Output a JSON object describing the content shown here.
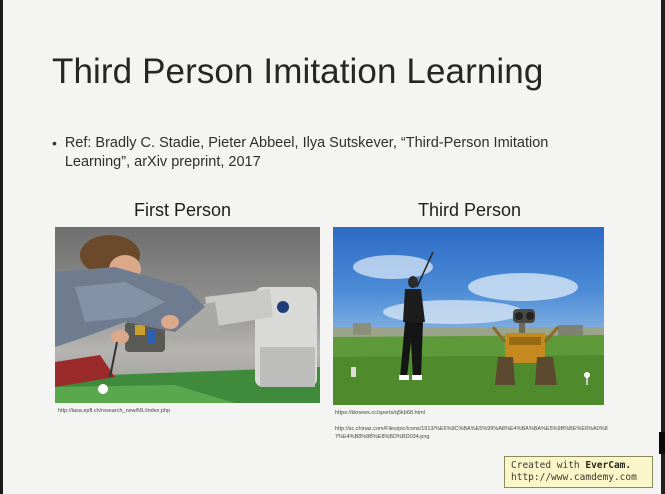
{
  "slide": {
    "title": "Third Person Imitation Learning",
    "bullet": {
      "symbol": "•",
      "text": "Ref: Bradly C. Stadie, Pieter Abbeel, Ilya Sutskever, “Third-Person Imitation Learning”, arXiv preprint, 2017"
    },
    "columns": [
      {
        "heading": "First Person",
        "image_subject": "person-guiding-robot-arm",
        "caption": "http://lasa.epfl.ch/research_new/ML/index.php"
      },
      {
        "heading": "Third Person",
        "image_subject": "golfer-and-robot-on-course",
        "caption_line1": "https://kknews.cc/sports/q5kb68.html",
        "caption_line2": "http://sc.chinaz.com/Files/pic/icons/1913/%E6%9C%BA%E5%99%A8%E4%BA%BA%E5%9B%BE%E6%A0%87%E4%B8%8B%E8%BD%BD034.png"
      }
    ]
  },
  "watermark": {
    "line1_prefix": "Created with ",
    "line1_brand": "EverCam.",
    "line2": "http://www.camdemy.com"
  },
  "colors": {
    "slide_bg": "#f4f4f2",
    "title": "#262626",
    "watermark_bg": "#fbf6c9"
  }
}
